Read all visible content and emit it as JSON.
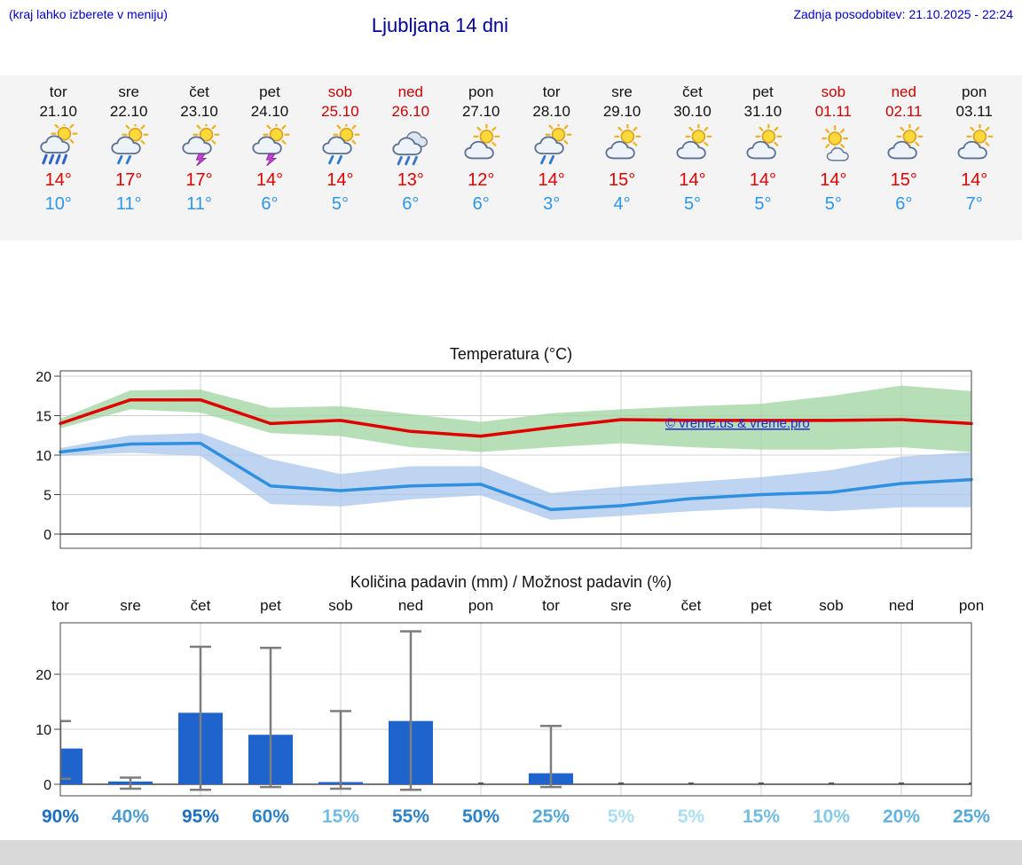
{
  "header": {
    "hint": "(kraj lahko izberete v meniju)",
    "title": "Ljubljana 14 dni",
    "updated": "Zadnja posodobitev: 21.10.2025 - 22:24"
  },
  "colors": {
    "temp_high": "#e00000",
    "temp_low": "#2e96ea",
    "weekend": "#cc0000",
    "bar_blue": "#1f63cc",
    "band_high": "#9fd49f",
    "band_low": "#a9c6ec",
    "strip_background": "#f4f4f4"
  },
  "forecast": {
    "days": [
      {
        "name": "tor",
        "date": "21.10",
        "weekend": false,
        "icon": "sun-cloud-heavy-rain",
        "high": "14°",
        "low": "10°"
      },
      {
        "name": "sre",
        "date": "22.10",
        "weekend": false,
        "icon": "sun-cloud-rain",
        "high": "17°",
        "low": "11°"
      },
      {
        "name": "čet",
        "date": "23.10",
        "weekend": false,
        "icon": "sun-cloud-thunder",
        "high": "17°",
        "low": "11°"
      },
      {
        "name": "pet",
        "date": "24.10",
        "weekend": false,
        "icon": "sun-cloud-thunder",
        "high": "14°",
        "low": "6°"
      },
      {
        "name": "sob",
        "date": "25.10",
        "weekend": true,
        "icon": "sun-cloud-rain",
        "high": "14°",
        "low": "5°"
      },
      {
        "name": "ned",
        "date": "26.10",
        "weekend": true,
        "icon": "clouds-rain",
        "high": "13°",
        "low": "6°"
      },
      {
        "name": "pon",
        "date": "27.10",
        "weekend": false,
        "icon": "sun-clouds",
        "high": "12°",
        "low": "6°"
      },
      {
        "name": "tor",
        "date": "28.10",
        "weekend": false,
        "icon": "sun-cloud-rain",
        "high": "14°",
        "low": "3°"
      },
      {
        "name": "sre",
        "date": "29.10",
        "weekend": false,
        "icon": "sun-clouds",
        "high": "15°",
        "low": "4°"
      },
      {
        "name": "čet",
        "date": "30.10",
        "weekend": false,
        "icon": "sun-clouds",
        "high": "14°",
        "low": "5°"
      },
      {
        "name": "pet",
        "date": "31.10",
        "weekend": false,
        "icon": "sun-clouds",
        "high": "14°",
        "low": "5°"
      },
      {
        "name": "sob",
        "date": "01.11",
        "weekend": true,
        "icon": "sun-cloud",
        "high": "14°",
        "low": "5°"
      },
      {
        "name": "ned",
        "date": "02.11",
        "weekend": true,
        "icon": "sun-clouds",
        "high": "15°",
        "low": "6°"
      },
      {
        "name": "pon",
        "date": "03.11",
        "weekend": false,
        "icon": "sun-clouds",
        "high": "14°",
        "low": "7°"
      }
    ]
  },
  "chart_data": [
    {
      "type": "line",
      "title": "Temperatura (°C)",
      "categories": [
        "tor",
        "sre",
        "čet",
        "pet",
        "sob",
        "ned",
        "pon",
        "tor",
        "sre",
        "čet",
        "pet",
        "sob",
        "ned",
        "pon"
      ],
      "yticks": [
        0,
        5,
        10,
        15,
        20
      ],
      "ylim": [
        -1.8,
        20.7
      ],
      "grid": true,
      "watermark": "© vreme.us & vreme.pro",
      "series": [
        {
          "name": "max_temp",
          "color": "#e00000",
          "values": [
            14,
            17,
            17,
            14,
            14.4,
            13,
            12.4,
            13.5,
            14.5,
            14.4,
            14.4,
            14.4,
            14.5,
            14
          ]
        },
        {
          "name": "min_temp",
          "color": "#3090e0",
          "values": [
            10.4,
            11.4,
            11.5,
            6.1,
            5.5,
            6.1,
            6.3,
            3.1,
            3.6,
            4.5,
            5,
            5.3,
            6.4,
            6.9
          ]
        }
      ],
      "bands": [
        {
          "name": "max_range",
          "color": "#9fd49f",
          "upper": [
            14.6,
            18.2,
            18.3,
            16,
            16.2,
            15.2,
            14.2,
            15.3,
            15.8,
            16.2,
            16.5,
            17.5,
            18.8,
            18.1
          ],
          "lower": [
            13.4,
            15.8,
            15.4,
            12.8,
            12.4,
            11,
            10.4,
            11,
            11.5,
            11,
            10.7,
            10.7,
            11,
            10.4
          ]
        },
        {
          "name": "min_range",
          "color": "#a9c6ec",
          "upper": [
            10.9,
            12.5,
            12.8,
            9.5,
            7.6,
            8.6,
            8.6,
            5.2,
            6,
            6.6,
            7.2,
            8.1,
            9.8,
            10.4
          ],
          "lower": [
            9.9,
            10.3,
            9.9,
            3.8,
            3.5,
            4.4,
            4.9,
            1.8,
            2.3,
            2.9,
            3.3,
            2.9,
            3.4,
            3.4
          ]
        }
      ]
    },
    {
      "type": "bar",
      "title": "Količina padavin (mm) / Možnost padavin (%)",
      "categories": [
        "tor",
        "sre",
        "čet",
        "pet",
        "sob",
        "ned",
        "pon",
        "tor",
        "sre",
        "čet",
        "pet",
        "sob",
        "ned",
        "pon"
      ],
      "yticks": [
        0,
        10,
        20
      ],
      "ylim": [
        -2.1,
        29.4
      ],
      "grid": true,
      "bar_color": "#1f63cc",
      "values": [
        6.5,
        0.5,
        13,
        9,
        0.4,
        11.5,
        0,
        2,
        0,
        0,
        0,
        0,
        0,
        0
      ],
      "whisker_high": [
        11.5,
        1.2,
        25,
        24.8,
        13.3,
        27.8,
        0,
        10.6,
        0,
        0,
        0,
        0,
        0,
        0
      ],
      "whisker_low": [
        1,
        -0.8,
        -1,
        -0.5,
        -0.8,
        -1,
        0,
        -0.5,
        0,
        0,
        0,
        0,
        0,
        0
      ],
      "probabilities": [
        {
          "value": "90%",
          "color": "#1c6fc0"
        },
        {
          "value": "40%",
          "color": "#4c9cd2"
        },
        {
          "value": "95%",
          "color": "#1c6fc0"
        },
        {
          "value": "60%",
          "color": "#2d83c6"
        },
        {
          "value": "15%",
          "color": "#74bde2"
        },
        {
          "value": "55%",
          "color": "#2d83c6"
        },
        {
          "value": "50%",
          "color": "#2d83c6"
        },
        {
          "value": "25%",
          "color": "#57a9d8"
        },
        {
          "value": "5%",
          "color": "#abdff2"
        },
        {
          "value": "5%",
          "color": "#abdff2"
        },
        {
          "value": "15%",
          "color": "#74bde2"
        },
        {
          "value": "10%",
          "color": "#86c9e8"
        },
        {
          "value": "20%",
          "color": "#66b4de"
        },
        {
          "value": "25%",
          "color": "#57a9d8"
        }
      ]
    }
  ]
}
